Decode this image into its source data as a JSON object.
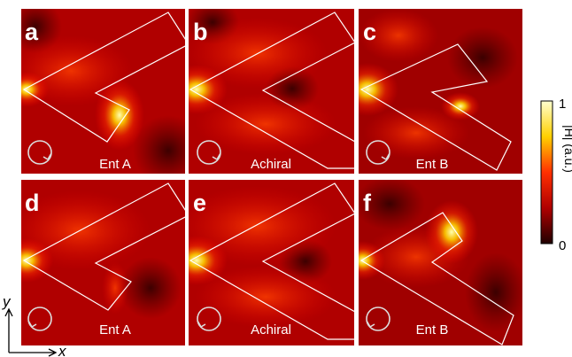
{
  "panels": [
    {
      "letter": "a",
      "label": "Ent A"
    },
    {
      "letter": "b",
      "label": "Achiral"
    },
    {
      "letter": "c",
      "label": "Ent B"
    },
    {
      "letter": "d",
      "label": "Ent A"
    },
    {
      "letter": "e",
      "label": "Achiral"
    },
    {
      "letter": "f",
      "label": "Ent B"
    }
  ],
  "colorbar": {
    "label": "|H| (a.u.)",
    "max": 1,
    "min": 0
  },
  "axes": {
    "y": "y",
    "x": "x"
  }
}
